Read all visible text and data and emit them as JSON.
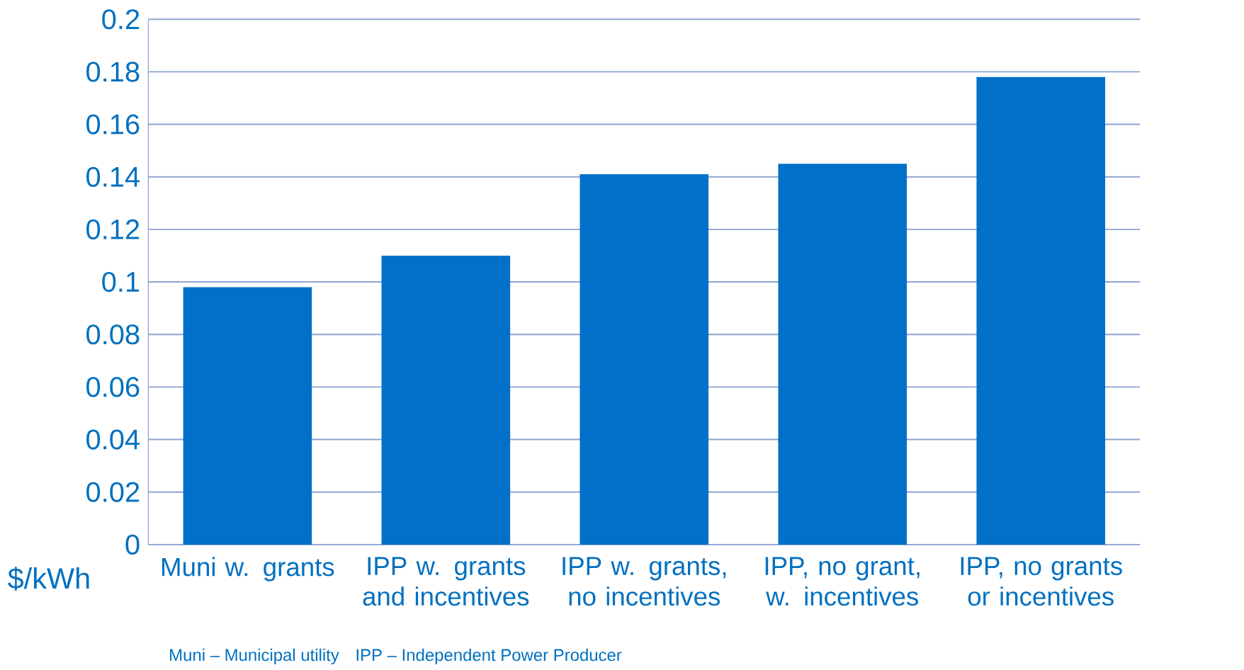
{
  "chart_data": {
    "type": "bar",
    "ylabel": "$/kWh",
    "categories": [
      "Muni w. grants",
      "IPP w. grants and incentives",
      "IPP w. grants, no incentives",
      "IPP, no grant, w. incentives",
      "IPP, no grants or incentives"
    ],
    "values": [
      0.098,
      0.11,
      0.141,
      0.145,
      0.178
    ],
    "color": "#0070c8",
    "ylim": [
      0,
      0.2
    ],
    "yticks": [
      0,
      0.02,
      0.04,
      0.06,
      0.08,
      0.1,
      0.12,
      0.14,
      0.16,
      0.18,
      0.2
    ],
    "grid": "y",
    "annotations": [
      "Muni – Municipal utility",
      "IPP – Independent Power Producer"
    ]
  }
}
